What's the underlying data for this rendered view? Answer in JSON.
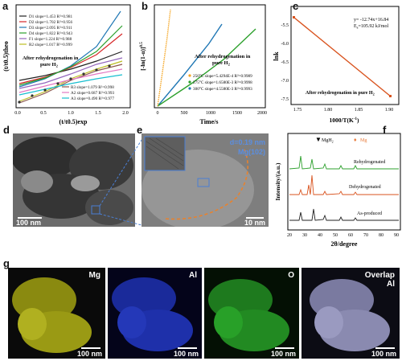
{
  "panels": {
    "a": {
      "label": "a",
      "ylabel": "(t/t0.5)theo",
      "xlabel": "(t/t0.5)exp",
      "note1": "After rehydrogenation in",
      "note2": "pure H",
      "note2_sub": "2",
      "legend_top": [
        {
          "name": "D1",
          "text": "D1  slope=1.453  R²=0.981",
          "color": "#222222"
        },
        {
          "name": "D2",
          "text": "D2  slope=1.702  R²=0.956",
          "color": "#d62728"
        },
        {
          "name": "D3",
          "text": "D3  slope=2.095  R²=0.911",
          "color": "#1f77b4"
        },
        {
          "name": "D4",
          "text": "D4  slope=1.822  R²=0.943",
          "color": "#2ca02c"
        },
        {
          "name": "F1",
          "text": "F1  slope=1.224  R²=0.988",
          "color": "#9467bd"
        },
        {
          "name": "R2",
          "text": "R2  slope=1.017  R²=0.999",
          "color": "#bcbd22"
        }
      ],
      "legend_bottom": [
        {
          "name": "R3",
          "text": "R3  slope=1.079  R²=0.998",
          "color": "#8c564b"
        },
        {
          "name": "A2",
          "text": "A2  slope=0.687  R²=0.993",
          "color": "#e377c2"
        },
        {
          "name": "A3",
          "text": "A3  slope=0.490  R²=0.977",
          "color": "#17becf"
        }
      ],
      "xticks": [
        "0.0",
        "0.5",
        "1.0",
        "1.5",
        "2.0"
      ]
    },
    "b": {
      "label": "b",
      "ylabel": "[-ln(1-α)]",
      "ylabel_sup": "0.5",
      "xlabel": "Time/s",
      "note1": "After rehydrogenation in",
      "note2": "pure H",
      "note2_sub": "2",
      "legend": [
        {
          "text": "250°C  slope=5.4294E-4  R²=0.9989",
          "color": "#f5a623"
        },
        {
          "text": "275°C  slope=1.6580E-3  R²=0.9998",
          "color": "#2ca02c"
        },
        {
          "text": "300°C  slope=4.5580E-3  R²=0.9993",
          "color": "#1f77b4"
        }
      ],
      "xticks": [
        "0",
        "500",
        "1000",
        "1500",
        "2000"
      ]
    },
    "c": {
      "label": "c",
      "ylabel": "lnk",
      "xlabel": "1000/T(K",
      "xlabel_sup": "-1",
      "xlabel_end": ")",
      "eq": "y= -12.74x+16.84",
      "ea": "E",
      "ea_sub": "a",
      "ea_val": "=105.92 kJ/mol",
      "note": "After rehydrogenation in pure H",
      "note_sub": "2",
      "yticks": [
        "-5.5",
        "-6.0",
        "-6.5",
        "-7.0",
        "-7.5"
      ],
      "xticks": [
        "1.75",
        "1.80",
        "1.85",
        "1.90"
      ],
      "line_color": "#d9531e"
    },
    "d": {
      "label": "d",
      "scale": "100 nm"
    },
    "e": {
      "label": "e",
      "scale": "10 nm",
      "d_spacing": "d=0.19 nm",
      "plane": "Mg(102)"
    },
    "f": {
      "label": "f",
      "ylabel": "Intensity/(a.u.)",
      "xlabel": "2θ/degree",
      "legend_mgh2": "MgH",
      "legend_mgh2_sub": "2",
      "legend_mg": "Mg",
      "traces": [
        "Rehydrogenated",
        "Dehydrogenated",
        "As-produced"
      ],
      "xticks": [
        "20",
        "30",
        "40",
        "50",
        "60",
        "70",
        "80",
        "90"
      ],
      "colors": [
        "#2ca02c",
        "#d9531e",
        "#222222"
      ]
    },
    "g": {
      "label": "g",
      "maps": [
        {
          "element": "Mg",
          "scale": "100 nm"
        },
        {
          "element": "Al",
          "scale": "100 nm"
        },
        {
          "element": "O",
          "scale": "100 nm"
        },
        {
          "element": "Overlap\nAl",
          "scale": "100 nm"
        }
      ]
    }
  }
}
